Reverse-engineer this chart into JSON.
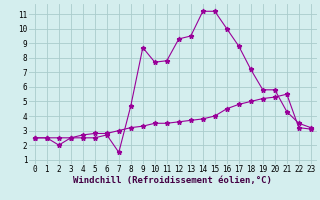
{
  "line1_x": [
    0,
    1,
    2,
    3,
    4,
    5,
    6,
    7,
    8,
    9,
    10,
    11,
    12,
    13,
    14,
    15,
    16,
    17,
    18,
    19,
    20,
    21,
    22,
    23
  ],
  "line1_y": [
    2.5,
    2.5,
    2.0,
    2.5,
    2.5,
    2.5,
    2.7,
    1.5,
    4.7,
    8.7,
    7.7,
    7.8,
    9.3,
    9.5,
    11.2,
    11.2,
    10.0,
    8.8,
    7.2,
    5.8,
    5.8,
    4.3,
    3.5,
    3.2
  ],
  "line2_x": [
    0,
    1,
    2,
    3,
    4,
    5,
    6,
    7,
    8,
    9,
    10,
    11,
    12,
    13,
    14,
    15,
    16,
    17,
    18,
    19,
    20,
    21,
    22,
    23
  ],
  "line2_y": [
    2.5,
    2.5,
    2.5,
    2.5,
    2.7,
    2.8,
    2.8,
    3.0,
    3.2,
    3.3,
    3.5,
    3.5,
    3.6,
    3.7,
    3.8,
    4.0,
    4.5,
    4.8,
    5.0,
    5.2,
    5.3,
    5.5,
    3.2,
    3.1
  ],
  "line_color": "#990099",
  "bg_color": "#d4eeee",
  "grid_color": "#aacccc",
  "xlabel": "Windchill (Refroidissement éolien,°C)",
  "xlim": [
    -0.5,
    23.5
  ],
  "ylim": [
    0.7,
    11.7
  ],
  "xtick_labels": [
    "0",
    "1",
    "2",
    "3",
    "4",
    "5",
    "6",
    "7",
    "8",
    "9",
    "10",
    "11",
    "12",
    "13",
    "14",
    "15",
    "16",
    "17",
    "18",
    "19",
    "20",
    "21",
    "22",
    "23"
  ],
  "ytick_labels": [
    "1",
    "2",
    "3",
    "4",
    "5",
    "6",
    "7",
    "8",
    "9",
    "10",
    "11"
  ],
  "ytick_vals": [
    1,
    2,
    3,
    4,
    5,
    6,
    7,
    8,
    9,
    10,
    11
  ],
  "xtick_vals": [
    0,
    1,
    2,
    3,
    4,
    5,
    6,
    7,
    8,
    9,
    10,
    11,
    12,
    13,
    14,
    15,
    16,
    17,
    18,
    19,
    20,
    21,
    22,
    23
  ],
  "marker": "*",
  "markersize": 3.5,
  "linewidth": 0.8,
  "xlabel_fontsize": 6.5,
  "tick_fontsize": 5.5
}
